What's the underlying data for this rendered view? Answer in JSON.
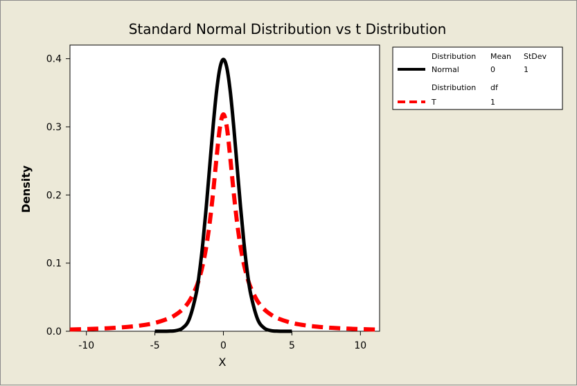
{
  "chart_data": {
    "type": "line",
    "title": "Standard Normal Distribution vs t Distribution",
    "xlabel": "X",
    "ylabel": "Density",
    "xlim": [
      -11.2,
      11.4
    ],
    "ylim": [
      0,
      0.42
    ],
    "x_ticks": [
      -10,
      -5,
      0,
      5,
      10
    ],
    "y_ticks": [
      0.0,
      0.1,
      0.2,
      0.3,
      0.4
    ],
    "x_tick_labels": [
      "-10",
      "-5",
      "0",
      "5",
      "10"
    ],
    "y_tick_labels": [
      "0.0",
      "0.1",
      "0.2",
      "0.3",
      "0.4"
    ],
    "grid": false,
    "legend_position": "right",
    "series": [
      {
        "name": "Normal",
        "color": "#000000",
        "style": "solid",
        "x": [
          -5,
          -4.5,
          -4,
          -3.5,
          -3,
          -2.5,
          -2,
          -1.75,
          -1.5,
          -1.25,
          -1,
          -0.75,
          -0.5,
          -0.25,
          0,
          0.25,
          0.5,
          0.75,
          1,
          1.25,
          1.5,
          1.75,
          2,
          2.5,
          3,
          3.5,
          4,
          4.5,
          5
        ],
        "y": [
          1.5e-06,
          1.6e-05,
          0.00013,
          0.00087,
          0.0044,
          0.0175,
          0.054,
          0.0863,
          0.1295,
          0.1826,
          0.242,
          0.3011,
          0.3521,
          0.3867,
          0.3989,
          0.3867,
          0.3521,
          0.3011,
          0.242,
          0.1826,
          0.1295,
          0.0863,
          0.054,
          0.0175,
          0.0044,
          0.00087,
          0.00013,
          1.6e-05,
          1.5e-06
        ]
      },
      {
        "name": "T",
        "color": "#ff0000",
        "style": "dashed",
        "x": [
          -11.2,
          -10,
          -9,
          -8,
          -7,
          -6,
          -5,
          -4,
          -3.5,
          -3,
          -2.5,
          -2,
          -1.75,
          -1.5,
          -1.25,
          -1,
          -0.75,
          -0.5,
          -0.25,
          0,
          0.25,
          0.5,
          0.75,
          1,
          1.25,
          1.5,
          1.75,
          2,
          2.5,
          3,
          3.5,
          4,
          5,
          6,
          7,
          8,
          9,
          10,
          11.4
        ],
        "y": [
          0.0025,
          0.0032,
          0.0039,
          0.0049,
          0.0064,
          0.0086,
          0.0122,
          0.0187,
          0.024,
          0.0318,
          0.0439,
          0.0637,
          0.0785,
          0.0979,
          0.1242,
          0.1592,
          0.2037,
          0.2546,
          0.2996,
          0.3183,
          0.2996,
          0.2546,
          0.2037,
          0.1592,
          0.1242,
          0.0979,
          0.0785,
          0.0637,
          0.0439,
          0.0318,
          0.024,
          0.0187,
          0.0122,
          0.0086,
          0.0064,
          0.0049,
          0.0039,
          0.0032,
          0.0024
        ]
      }
    ]
  },
  "legend": {
    "group1": {
      "headers": [
        "Distribution",
        "Mean",
        "StDev"
      ],
      "row": [
        "Normal",
        "0",
        "1"
      ]
    },
    "group2": {
      "headers": [
        "Distribution",
        "df"
      ],
      "row": [
        "T",
        "1"
      ]
    }
  }
}
